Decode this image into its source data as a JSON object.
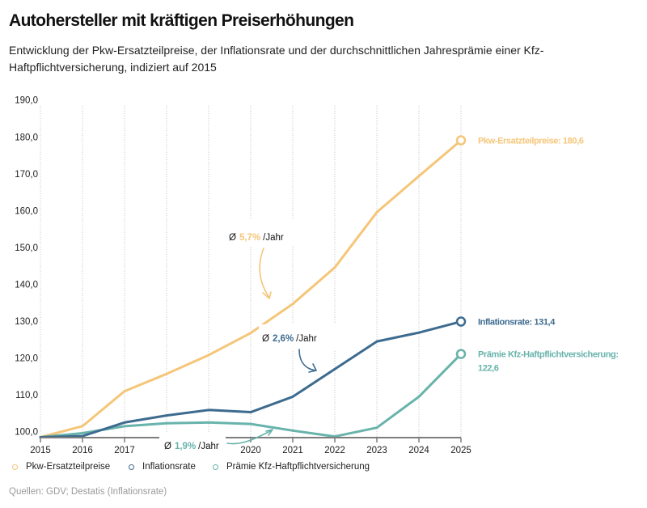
{
  "header": {
    "title": "Autohersteller mit kräftigen Preiserhöhungen",
    "subtitle": "Entwicklung der Pkw-Ersatzteilpreise, der Inflationsrate und der durchschnittlichen Jahresprämie einer Kfz-Haftpflichtversicherung, indiziert auf 2015"
  },
  "chart_data": {
    "type": "line",
    "title": "Autohersteller mit kräftigen Preiserhöhungen",
    "subtitle": "Entwicklung der Pkw-Ersatzteilpreise, der Inflationsrate und der durchschnittlichen Jahresprämie einer Kfz-Haftpflichtversicherung, indiziert auf 2015",
    "xlabel": "",
    "ylabel": "",
    "x": [
      2015,
      2016,
      2017,
      2018,
      2019,
      2020,
      2021,
      2022,
      2023,
      2024,
      2025
    ],
    "x_tick_labels": [
      "2015",
      "2016",
      "2017",
      "",
      "",
      "2020",
      "2021",
      "2022",
      "2023",
      "2024",
      "2025"
    ],
    "y_ticks": [
      100,
      110,
      120,
      130,
      140,
      150,
      160,
      170,
      180,
      190
    ],
    "y_tick_labels": [
      "100,0",
      "110,0",
      "120,0",
      "130,0",
      "140,0",
      "150,0",
      "160,0",
      "170,0",
      "180,0",
      "190,0"
    ],
    "ylim": [
      100,
      190
    ],
    "grid": {
      "vertical": true,
      "horizontal": false,
      "style": "dotted"
    },
    "series": [
      {
        "key": "pkw",
        "name": "Pkw-Ersatzteilpreise",
        "color": "#F5C679",
        "values": [
          100.0,
          103.0,
          112.5,
          117.2,
          122.3,
          128.3,
          136.2,
          146.1,
          161.1,
          170.9,
          180.6
        ],
        "end_label": [
          "Pkw-Ersatzteilpreise: 180,6"
        ]
      },
      {
        "key": "inflation",
        "name": "Inflationsrate",
        "color": "#3D6B8F",
        "values": [
          100.0,
          100.3,
          104.0,
          105.9,
          107.4,
          106.8,
          111.0,
          118.5,
          126.0,
          128.4,
          131.4
        ],
        "end_label": [
          "Inflationsrate: 131,4"
        ]
      },
      {
        "key": "praemie",
        "name": "Prämie Kfz-Haftpflichtversicherung",
        "color": "#68B3AB",
        "values": [
          100.0,
          101.1,
          103.0,
          103.8,
          104.0,
          103.6,
          101.8,
          100.2,
          102.6,
          111.0,
          122.6
        ],
        "end_label": [
          "Prämie Kfz-Haftpflichtversicherung:",
          "122,6"
        ]
      }
    ],
    "annotations": [
      {
        "series": 0,
        "prefix": "Ø",
        "value": "5,7%",
        "suffix": "/Jahr"
      },
      {
        "series": 1,
        "prefix": "Ø",
        "value": "2,6%",
        "suffix": "/Jahr"
      },
      {
        "series": 2,
        "prefix": "Ø",
        "value": "1,9%",
        "suffix": "/Jahr"
      }
    ],
    "legend": {
      "position": "bottom-left",
      "entries": [
        "Pkw-Ersatzteilpreise",
        "Inflationsrate",
        "Prämie Kfz-Haftpflichtversicherung"
      ]
    }
  },
  "footer": {
    "source": "Quellen: GDV; Destatis (Inflationsrate)"
  }
}
